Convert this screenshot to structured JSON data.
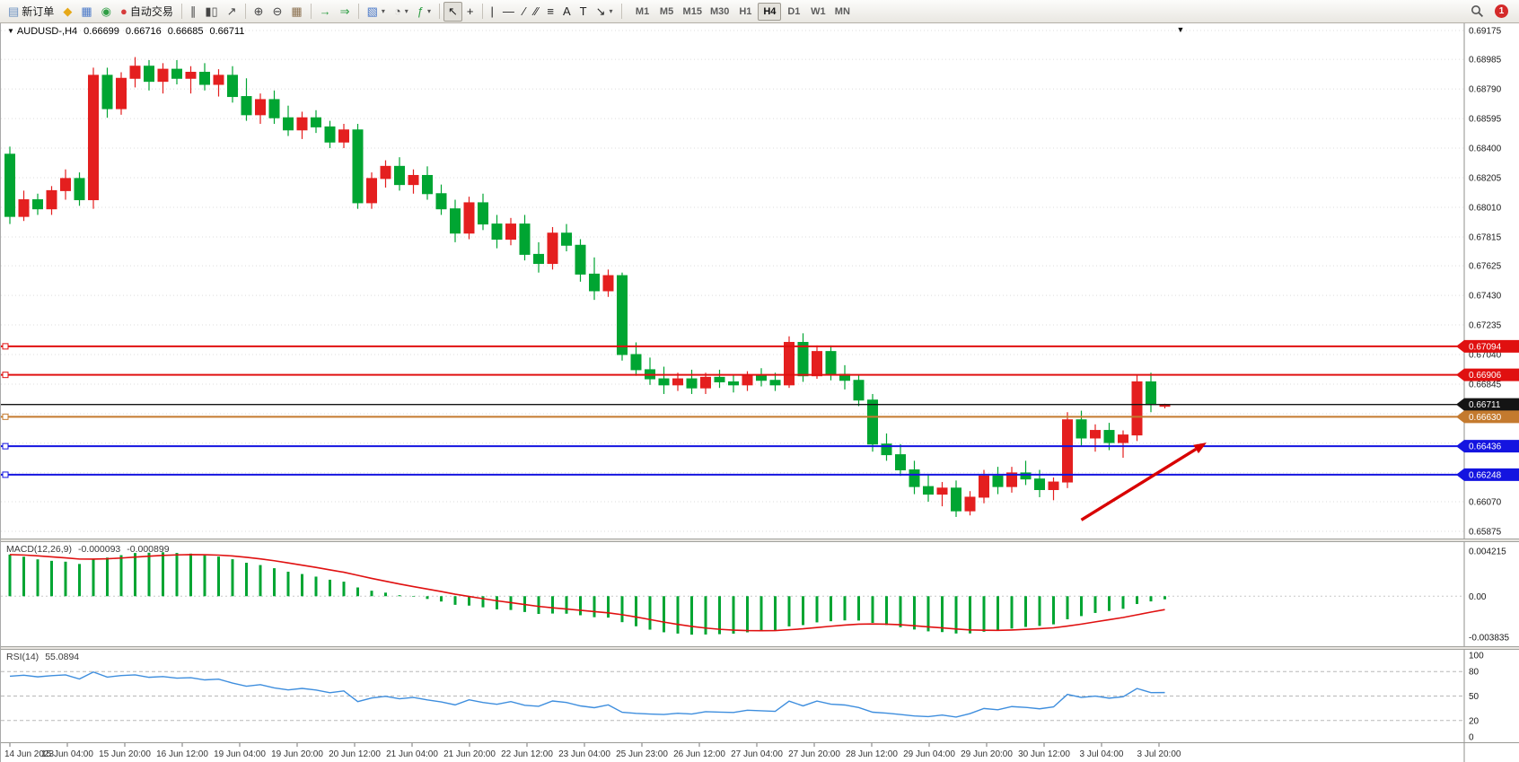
{
  "toolbar": {
    "notification_count": "1",
    "timeframes": [
      "M1",
      "M5",
      "M15",
      "M30",
      "H1",
      "H4",
      "D1",
      "W1",
      "MN"
    ],
    "active_timeframe": "H4",
    "buttons": [
      {
        "id": "new-order",
        "glyph": "▤",
        "color": "#6a8fc0",
        "label": "新订单"
      },
      {
        "id": "metaeditor",
        "glyph": "◆",
        "color": "#e6a817"
      },
      {
        "id": "chart-window",
        "glyph": "▦",
        "color": "#4a78c8"
      },
      {
        "id": "mql5-community",
        "glyph": "◉",
        "color": "#2f9e44"
      },
      {
        "id": "auto-trading",
        "glyph": "●",
        "color": "#d63b3b",
        "label": "自动交易"
      },
      {
        "type": "sep"
      },
      {
        "id": "bar-chart",
        "glyph": "∥",
        "color": "#444"
      },
      {
        "id": "candlestick-chart",
        "glyph": "▮▯",
        "color": "#444"
      },
      {
        "id": "line-chart",
        "glyph": "↗",
        "color": "#444"
      },
      {
        "type": "sep"
      },
      {
        "id": "zoom-in",
        "glyph": "⊕",
        "color": "#444"
      },
      {
        "id": "zoom-out",
        "glyph": "⊖",
        "color": "#444"
      },
      {
        "id": "tile-windows",
        "glyph": "▦",
        "color": "#8a6f4e"
      },
      {
        "type": "sep"
      },
      {
        "id": "auto-scroll",
        "glyph": "→",
        "color": "#2f9e44"
      },
      {
        "id": "chart-shift",
        "glyph": "⇒",
        "color": "#2f9e44"
      },
      {
        "type": "sep"
      },
      {
        "id": "new-chart",
        "glyph": "▧",
        "color": "#4a78c8",
        "caret": true
      },
      {
        "id": "periods",
        "glyph": "◔",
        "color": "#555",
        "caret": true
      },
      {
        "id": "indicators",
        "glyph": "ƒ",
        "color": "#2f9e44",
        "caret": true
      },
      {
        "type": "sep"
      },
      {
        "id": "cursor",
        "glyph": "↖",
        "color": "#222",
        "active": true
      },
      {
        "id": "crosshair",
        "glyph": "+",
        "color": "#222"
      },
      {
        "type": "sep"
      },
      {
        "id": "vertical-line",
        "glyph": "|",
        "color": "#222"
      },
      {
        "id": "horizontal-line",
        "glyph": "—",
        "color": "#222"
      },
      {
        "id": "trend-line",
        "glyph": "∕",
        "color": "#222"
      },
      {
        "id": "equidistant-channel",
        "glyph": "∕∕",
        "color": "#222"
      },
      {
        "id": "fibonacci",
        "glyph": "≡",
        "color": "#222"
      },
      {
        "id": "text",
        "glyph": "A",
        "color": "#222"
      },
      {
        "id": "text-label",
        "glyph": "T",
        "color": "#222"
      },
      {
        "id": "arrows",
        "glyph": "↘",
        "color": "#222",
        "caret": true
      },
      {
        "type": "sep"
      }
    ]
  },
  "chart_header": {
    "dropdown_marker": "▼",
    "symbol_period": "AUDUSD-,H4",
    "open": "0.66699",
    "high": "0.66716",
    "low": "0.66685",
    "close": "0.66711",
    "window_marker": "▼"
  },
  "chart_data": {
    "type": "candlestick",
    "symbol": "AUDUSD",
    "timeframe": "H4",
    "ylim": [
      0.65875,
      0.69175
    ],
    "up_color": "#e41f1f",
    "down_color": "#00a532",
    "grid_color": "#dcdcdc",
    "price_axis_ticks": [
      0.69175,
      0.68985,
      0.6879,
      0.68595,
      0.684,
      0.68205,
      0.6801,
      0.67815,
      0.67625,
      0.6743,
      0.67235,
      0.6704,
      0.66845,
      0.6665,
      0.66455,
      0.6626,
      0.6607,
      0.65875
    ],
    "candles": [
      [
        0.6836,
        0.6841,
        0.679,
        0.6795
      ],
      [
        0.6795,
        0.6812,
        0.6792,
        0.6806
      ],
      [
        0.6806,
        0.681,
        0.6796,
        0.68
      ],
      [
        0.68,
        0.6815,
        0.6796,
        0.6812
      ],
      [
        0.6812,
        0.6826,
        0.6806,
        0.682
      ],
      [
        0.682,
        0.6824,
        0.6802,
        0.6806
      ],
      [
        0.6806,
        0.6893,
        0.68,
        0.6888
      ],
      [
        0.6888,
        0.6893,
        0.686,
        0.6866
      ],
      [
        0.6866,
        0.689,
        0.6862,
        0.6886
      ],
      [
        0.6886,
        0.69,
        0.688,
        0.6894
      ],
      [
        0.6894,
        0.6898,
        0.6878,
        0.6884
      ],
      [
        0.6884,
        0.6896,
        0.6876,
        0.6892
      ],
      [
        0.6892,
        0.6898,
        0.6882,
        0.6886
      ],
      [
        0.6886,
        0.6894,
        0.6876,
        0.689
      ],
      [
        0.689,
        0.6896,
        0.6878,
        0.6882
      ],
      [
        0.6882,
        0.6892,
        0.6874,
        0.6888
      ],
      [
        0.6888,
        0.6894,
        0.687,
        0.6874
      ],
      [
        0.6874,
        0.6886,
        0.6858,
        0.6862
      ],
      [
        0.6862,
        0.6876,
        0.6856,
        0.6872
      ],
      [
        0.6872,
        0.6878,
        0.6856,
        0.686
      ],
      [
        0.686,
        0.6868,
        0.6848,
        0.6852
      ],
      [
        0.6852,
        0.6864,
        0.6846,
        0.686
      ],
      [
        0.686,
        0.6865,
        0.685,
        0.6854
      ],
      [
        0.6854,
        0.6858,
        0.684,
        0.6844
      ],
      [
        0.6844,
        0.6856,
        0.684,
        0.6852
      ],
      [
        0.6852,
        0.6856,
        0.68,
        0.6804
      ],
      [
        0.6804,
        0.6824,
        0.68,
        0.682
      ],
      [
        0.682,
        0.6832,
        0.6814,
        0.6828
      ],
      [
        0.6828,
        0.6834,
        0.6812,
        0.6816
      ],
      [
        0.6816,
        0.6826,
        0.681,
        0.6822
      ],
      [
        0.6822,
        0.6828,
        0.6806,
        0.681
      ],
      [
        0.681,
        0.6816,
        0.6796,
        0.68
      ],
      [
        0.68,
        0.6806,
        0.6778,
        0.6784
      ],
      [
        0.6784,
        0.6808,
        0.678,
        0.6804
      ],
      [
        0.6804,
        0.681,
        0.6786,
        0.679
      ],
      [
        0.679,
        0.6796,
        0.6774,
        0.678
      ],
      [
        0.678,
        0.6794,
        0.6776,
        0.679
      ],
      [
        0.679,
        0.6796,
        0.6766,
        0.677
      ],
      [
        0.677,
        0.6778,
        0.6758,
        0.6764
      ],
      [
        0.6764,
        0.6788,
        0.676,
        0.6784
      ],
      [
        0.6784,
        0.679,
        0.6772,
        0.6776
      ],
      [
        0.6776,
        0.678,
        0.6752,
        0.6757
      ],
      [
        0.6757,
        0.6768,
        0.674,
        0.6746
      ],
      [
        0.6746,
        0.676,
        0.6742,
        0.6756
      ],
      [
        0.6756,
        0.6758,
        0.67,
        0.6704
      ],
      [
        0.6704,
        0.6712,
        0.669,
        0.6694
      ],
      [
        0.6694,
        0.6702,
        0.6684,
        0.6688
      ],
      [
        0.6688,
        0.6696,
        0.6678,
        0.6684
      ],
      [
        0.6684,
        0.6692,
        0.668,
        0.6688
      ],
      [
        0.6688,
        0.6694,
        0.6678,
        0.6682
      ],
      [
        0.6682,
        0.6692,
        0.6678,
        0.6689
      ],
      [
        0.6689,
        0.6694,
        0.6682,
        0.6686
      ],
      [
        0.6686,
        0.6691,
        0.6679,
        0.6684
      ],
      [
        0.6684,
        0.6693,
        0.668,
        0.669
      ],
      [
        0.669,
        0.6695,
        0.6683,
        0.6687
      ],
      [
        0.6687,
        0.6692,
        0.668,
        0.6684
      ],
      [
        0.6684,
        0.6716,
        0.6682,
        0.6712
      ],
      [
        0.6712,
        0.6718,
        0.6686,
        0.669
      ],
      [
        0.669,
        0.671,
        0.6688,
        0.6706
      ],
      [
        0.6706,
        0.671,
        0.6687,
        0.6691
      ],
      [
        0.6691,
        0.6697,
        0.6681,
        0.6687
      ],
      [
        0.6687,
        0.6691,
        0.667,
        0.6674
      ],
      [
        0.6674,
        0.6678,
        0.664,
        0.6645
      ],
      [
        0.6645,
        0.6652,
        0.6634,
        0.6638
      ],
      [
        0.6638,
        0.6645,
        0.6624,
        0.6628
      ],
      [
        0.6628,
        0.6634,
        0.6612,
        0.6617
      ],
      [
        0.6617,
        0.6625,
        0.6607,
        0.6612
      ],
      [
        0.6612,
        0.662,
        0.6604,
        0.6616
      ],
      [
        0.6616,
        0.6621,
        0.6597,
        0.6601
      ],
      [
        0.6601,
        0.6614,
        0.6598,
        0.661
      ],
      [
        0.661,
        0.6628,
        0.6606,
        0.6624
      ],
      [
        0.6624,
        0.663,
        0.6612,
        0.6617
      ],
      [
        0.6617,
        0.663,
        0.6613,
        0.6626
      ],
      [
        0.6626,
        0.6634,
        0.6618,
        0.6622
      ],
      [
        0.6622,
        0.6628,
        0.661,
        0.6615
      ],
      [
        0.6615,
        0.6623,
        0.6608,
        0.662
      ],
      [
        0.662,
        0.6666,
        0.6616,
        0.6661
      ],
      [
        0.6661,
        0.6667,
        0.6644,
        0.6649
      ],
      [
        0.6649,
        0.6658,
        0.664,
        0.6654
      ],
      [
        0.6654,
        0.6659,
        0.6641,
        0.6646
      ],
      [
        0.6646,
        0.6654,
        0.6636,
        0.6651
      ],
      [
        0.6651,
        0.6691,
        0.6647,
        0.6686
      ],
      [
        0.6686,
        0.6692,
        0.6666,
        0.6671
      ],
      [
        0.66699,
        0.66716,
        0.66685,
        0.66711
      ]
    ],
    "horizontal_lines": [
      {
        "price": 0.67094,
        "label": "0.67094",
        "color": "#e01010",
        "width": 2
      },
      {
        "price": 0.66906,
        "label": "0.66906",
        "color": "#e01010",
        "width": 2
      },
      {
        "price": 0.6663,
        "label": "0.66630",
        "color": "#c47a2e",
        "width": 2
      },
      {
        "price": 0.66436,
        "label": "0.66436",
        "color": "#1414e0",
        "width": 2
      },
      {
        "price": 0.66248,
        "label": "0.66248",
        "color": "#1414e0",
        "width": 2
      }
    ],
    "bid_line": {
      "price": 0.66711,
      "label": "0.66711",
      "color": "#141414"
    },
    "arrow_object": {
      "from_bar": 77,
      "from_price": 0.6595,
      "to_bar": 86,
      "to_price": 0.6646,
      "color": "#d80000"
    },
    "x_labels": [
      "14 Jun 2023",
      "15 Jun 04:00",
      "15 Jun 20:00",
      "16 Jun 12:00",
      "19 Jun 04:00",
      "19 Jun 20:00",
      "20 Jun 12:00",
      "21 Jun 04:00",
      "21 Jun 20:00",
      "22 Jun 12:00",
      "23 Jun 04:00",
      "25 Jun 23:00",
      "26 Jun 12:00",
      "27 Jun 04:00",
      "27 Jun 20:00",
      "28 Jun 12:00",
      "29 Jun 04:00",
      "29 Jun 20:00",
      "30 Jun 12:00",
      "3 Jul 04:00",
      "3 Jul 20:00"
    ],
    "indicators": [
      {
        "type": "MACD",
        "display": "MACD(12,26,9)",
        "params": [
          12,
          26,
          9
        ],
        "value1": "-0.000093",
        "value2": "-0.000899",
        "ylim": [
          -0.003835,
          0.004215
        ],
        "axis_ticks": [
          {
            "v": 0.004215,
            "label": "0.004215"
          },
          {
            "v": 0,
            "label": "0.00"
          },
          {
            "v": -0.003835,
            "label": "-0.003835"
          }
        ],
        "histogram_color": "#00a532",
        "signal_color": "#e01010"
      },
      {
        "type": "RSI",
        "display": "RSI(14)",
        "params": [
          14
        ],
        "value": "55.0894",
        "ylim": [
          0,
          100
        ],
        "levels": [
          80,
          50,
          20
        ],
        "axis_ticks": [
          {
            "v": 100,
            "label": "100"
          },
          {
            "v": 80,
            "label": "80"
          },
          {
            "v": 50,
            "label": "50"
          },
          {
            "v": 20,
            "label": "20"
          },
          {
            "v": 0,
            "label": "0"
          }
        ],
        "line_color": "#3e8ede"
      }
    ]
  }
}
